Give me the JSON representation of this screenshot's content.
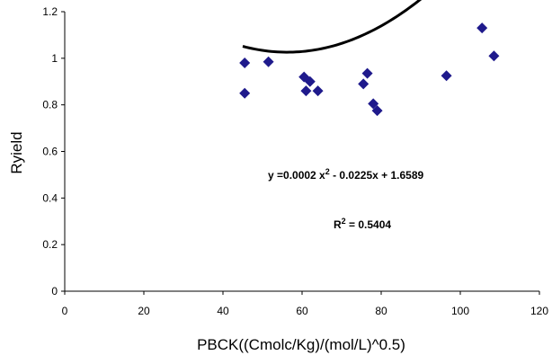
{
  "chart_data": {
    "type": "scatter",
    "title": "",
    "xlabel": "PBCK((Cmolc/Kg)/(mol/L)^0.5)",
    "ylabel": "Ryield",
    "xlim": [
      0,
      120
    ],
    "ylim": [
      0,
      1.2
    ],
    "x_ticks": [
      "0",
      "20",
      "40",
      "60",
      "80",
      "100",
      "120"
    ],
    "y_ticks": [
      "0",
      "0.2",
      "0.4",
      "0.6",
      "0.8",
      "1",
      "1.2"
    ],
    "grid": false,
    "marker": "diamond",
    "marker_color": "#1F1A8C",
    "trendline_color": "#000000",
    "points": [
      {
        "x": 45.5,
        "y": 0.98
      },
      {
        "x": 45.5,
        "y": 0.85
      },
      {
        "x": 51.5,
        "y": 0.985
      },
      {
        "x": 60.5,
        "y": 0.92
      },
      {
        "x": 61.0,
        "y": 0.86
      },
      {
        "x": 62.0,
        "y": 0.9
      },
      {
        "x": 64.0,
        "y": 0.86
      },
      {
        "x": 75.5,
        "y": 0.89
      },
      {
        "x": 76.5,
        "y": 0.935
      },
      {
        "x": 78.0,
        "y": 0.805
      },
      {
        "x": 79.0,
        "y": 0.775
      },
      {
        "x": 96.5,
        "y": 0.925
      },
      {
        "x": 105.5,
        "y": 1.13
      },
      {
        "x": 108.5,
        "y": 1.01
      }
    ],
    "trendline": {
      "type": "polynomial",
      "coefficients": [
        0.0002,
        -0.0225,
        1.6589
      ],
      "x_range": [
        45,
        108.5
      ],
      "equation_prefix": "y =0.0002 x",
      "equation_exp": "2",
      "equation_suffix": " - 0.0225x + 1.6589",
      "r2_prefix": "R",
      "r2_exp": "2",
      "r2_suffix": " = 0.5404"
    }
  }
}
